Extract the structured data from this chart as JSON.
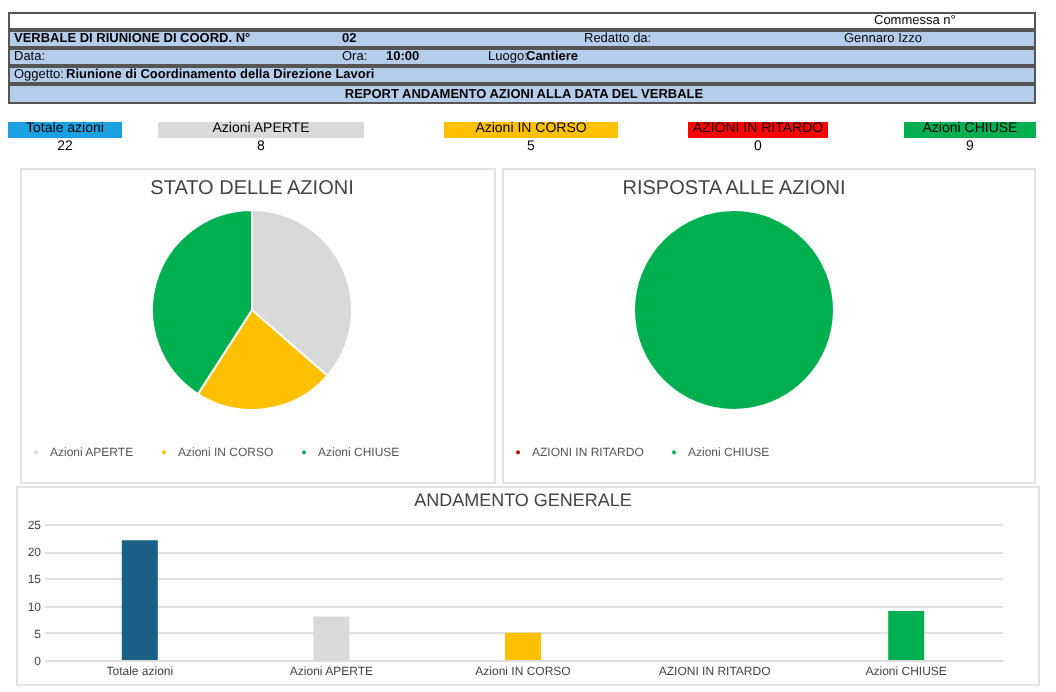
{
  "chart_data": [
    {
      "type": "other",
      "title": "REPORT ANDAMENTO AZIONI ALLA DATA DEL VERBALE",
      "annotations": [
        "Commessa n°",
        "VERBALE DI RIUNIONE DI COORD. N°",
        "02",
        "Redatto da:",
        "Gennaro Izzo",
        "Data:",
        "Ora:",
        "10:00",
        "Luogo:",
        "Cantiere",
        "Oggetto:",
        "Riunione di Coordinamento della Direzione Lavori"
      ],
      "categories": [
        "Totale azioni",
        "Azioni APERTE",
        "Azioni IN CORSO",
        "AZIONI IN RITARDO",
        "Azioni CHIUSE"
      ],
      "values": [
        22,
        8,
        5,
        0,
        9
      ],
      "colors": [
        "#1ba1e2",
        "#d9d9d9",
        "#ffc000",
        "#ff0000",
        "#00b050"
      ],
      "data_labels": true
    },
    {
      "type": "pie",
      "title": "STATO DELLE AZIONI",
      "categories": [
        "Azioni APERTE",
        "Azioni IN CORSO",
        "Azioni CHIUSE"
      ],
      "values": [
        36.4,
        22.7,
        40.9
      ],
      "colors": [
        "#d9d9d9",
        "#ffc000",
        "#00b050"
      ],
      "legend": "bottom"
    },
    {
      "type": "pie",
      "title": "RISPOSTA ALLE AZIONI",
      "categories": [
        "AZIONI IN RITARDO",
        "Azioni CHIUSE"
      ],
      "values": [
        0,
        100
      ],
      "colors": [
        "#c00000",
        "#00b050"
      ],
      "legend": "bottom"
    },
    {
      "type": "bar",
      "title": "ANDAMENTO GENERALE",
      "categories": [
        "Totale azioni",
        "Azioni APERTE",
        "Azioni IN CORSO",
        "AZIONI IN RITARDO",
        "Azioni CHIUSE"
      ],
      "values": [
        22,
        8,
        5,
        0,
        9
      ],
      "colors": [
        "#1a5f86",
        "#d9d9d9",
        "#ffc000",
        "#ff0000",
        "#00b050"
      ],
      "ylim": [
        0,
        25
      ],
      "yticks": [
        0,
        5,
        10,
        15,
        20,
        25
      ],
      "grid": "y"
    }
  ]
}
